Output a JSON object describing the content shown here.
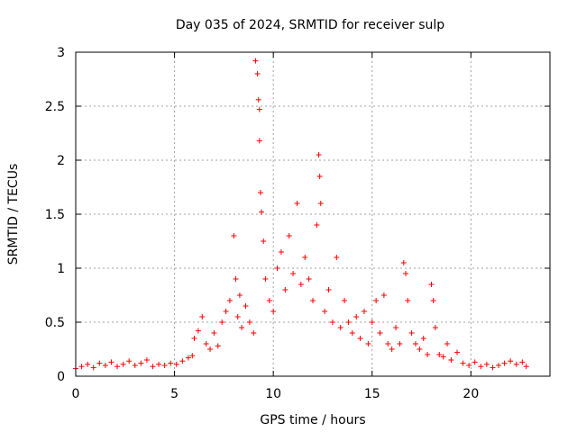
{
  "chart_data": {
    "type": "scatter",
    "title": "Day 035 of 2024, SRMTID for receiver sulp",
    "xlabel": "GPS time / hours",
    "ylabel": "SRMTID / TECUs",
    "xlim": [
      0,
      24
    ],
    "ylim": [
      0,
      3
    ],
    "xticks": [
      0,
      5,
      10,
      15,
      20
    ],
    "xtick_labels": [
      "0",
      "5",
      "10",
      "15",
      "20"
    ],
    "yticks": [
      0,
      0.5,
      1,
      1.5,
      2,
      2.5,
      3
    ],
    "ytick_labels": [
      "0",
      "0.5",
      "1",
      "1.5",
      "2",
      "2.5",
      "3"
    ],
    "grid": true,
    "marker": "+",
    "color": "#ff0000",
    "series": [
      {
        "name": "SRMTID",
        "x": [
          0.0,
          0.3,
          0.6,
          0.9,
          1.2,
          1.5,
          1.8,
          2.1,
          2.4,
          2.7,
          3.0,
          3.3,
          3.6,
          3.9,
          4.2,
          4.5,
          4.8,
          5.1,
          5.4,
          5.7,
          5.9,
          6.0,
          6.2,
          6.4,
          6.6,
          6.8,
          7.0,
          7.2,
          7.4,
          7.6,
          7.8,
          8.0,
          8.1,
          8.2,
          8.3,
          8.4,
          8.6,
          8.8,
          9.0,
          9.1,
          9.2,
          9.25,
          9.3,
          9.3,
          9.35,
          9.4,
          9.5,
          9.6,
          9.8,
          10.0,
          10.2,
          10.4,
          10.6,
          10.8,
          11.0,
          11.2,
          11.4,
          11.6,
          11.8,
          12.0,
          12.2,
          12.3,
          12.35,
          12.4,
          12.6,
          12.8,
          13.0,
          13.2,
          13.4,
          13.6,
          13.8,
          14.0,
          14.2,
          14.4,
          14.6,
          14.8,
          15.0,
          15.2,
          15.4,
          15.6,
          15.8,
          16.0,
          16.2,
          16.4,
          16.6,
          16.7,
          16.8,
          17.0,
          17.2,
          17.4,
          17.6,
          17.8,
          18.0,
          18.1,
          18.2,
          18.4,
          18.6,
          18.8,
          19.0,
          19.3,
          19.6,
          19.9,
          20.2,
          20.5,
          20.8,
          21.1,
          21.4,
          21.7,
          22.0,
          22.3,
          22.6,
          22.8
        ],
        "y": [
          0.07,
          0.09,
          0.11,
          0.08,
          0.12,
          0.1,
          0.13,
          0.09,
          0.11,
          0.14,
          0.1,
          0.12,
          0.15,
          0.09,
          0.11,
          0.1,
          0.12,
          0.11,
          0.14,
          0.17,
          0.19,
          0.35,
          0.42,
          0.55,
          0.3,
          0.25,
          0.4,
          0.28,
          0.5,
          0.6,
          0.7,
          1.3,
          0.9,
          0.55,
          0.75,
          0.45,
          0.65,
          0.5,
          0.4,
          2.92,
          2.8,
          2.56,
          2.47,
          2.18,
          1.7,
          1.52,
          1.25,
          0.9,
          0.7,
          0.6,
          1.0,
          1.15,
          0.8,
          1.3,
          0.95,
          1.6,
          0.85,
          1.1,
          0.9,
          0.7,
          1.4,
          2.05,
          1.85,
          1.6,
          0.6,
          0.8,
          0.5,
          1.1,
          0.45,
          0.7,
          0.5,
          0.4,
          0.55,
          0.35,
          0.6,
          0.3,
          0.5,
          0.7,
          0.4,
          0.75,
          0.3,
          0.25,
          0.45,
          0.3,
          1.05,
          0.95,
          0.7,
          0.4,
          0.3,
          0.25,
          0.35,
          0.2,
          0.85,
          0.7,
          0.45,
          0.2,
          0.18,
          0.3,
          0.15,
          0.22,
          0.12,
          0.1,
          0.13,
          0.09,
          0.11,
          0.08,
          0.1,
          0.12,
          0.14,
          0.11,
          0.13,
          0.09
        ]
      }
    ]
  }
}
